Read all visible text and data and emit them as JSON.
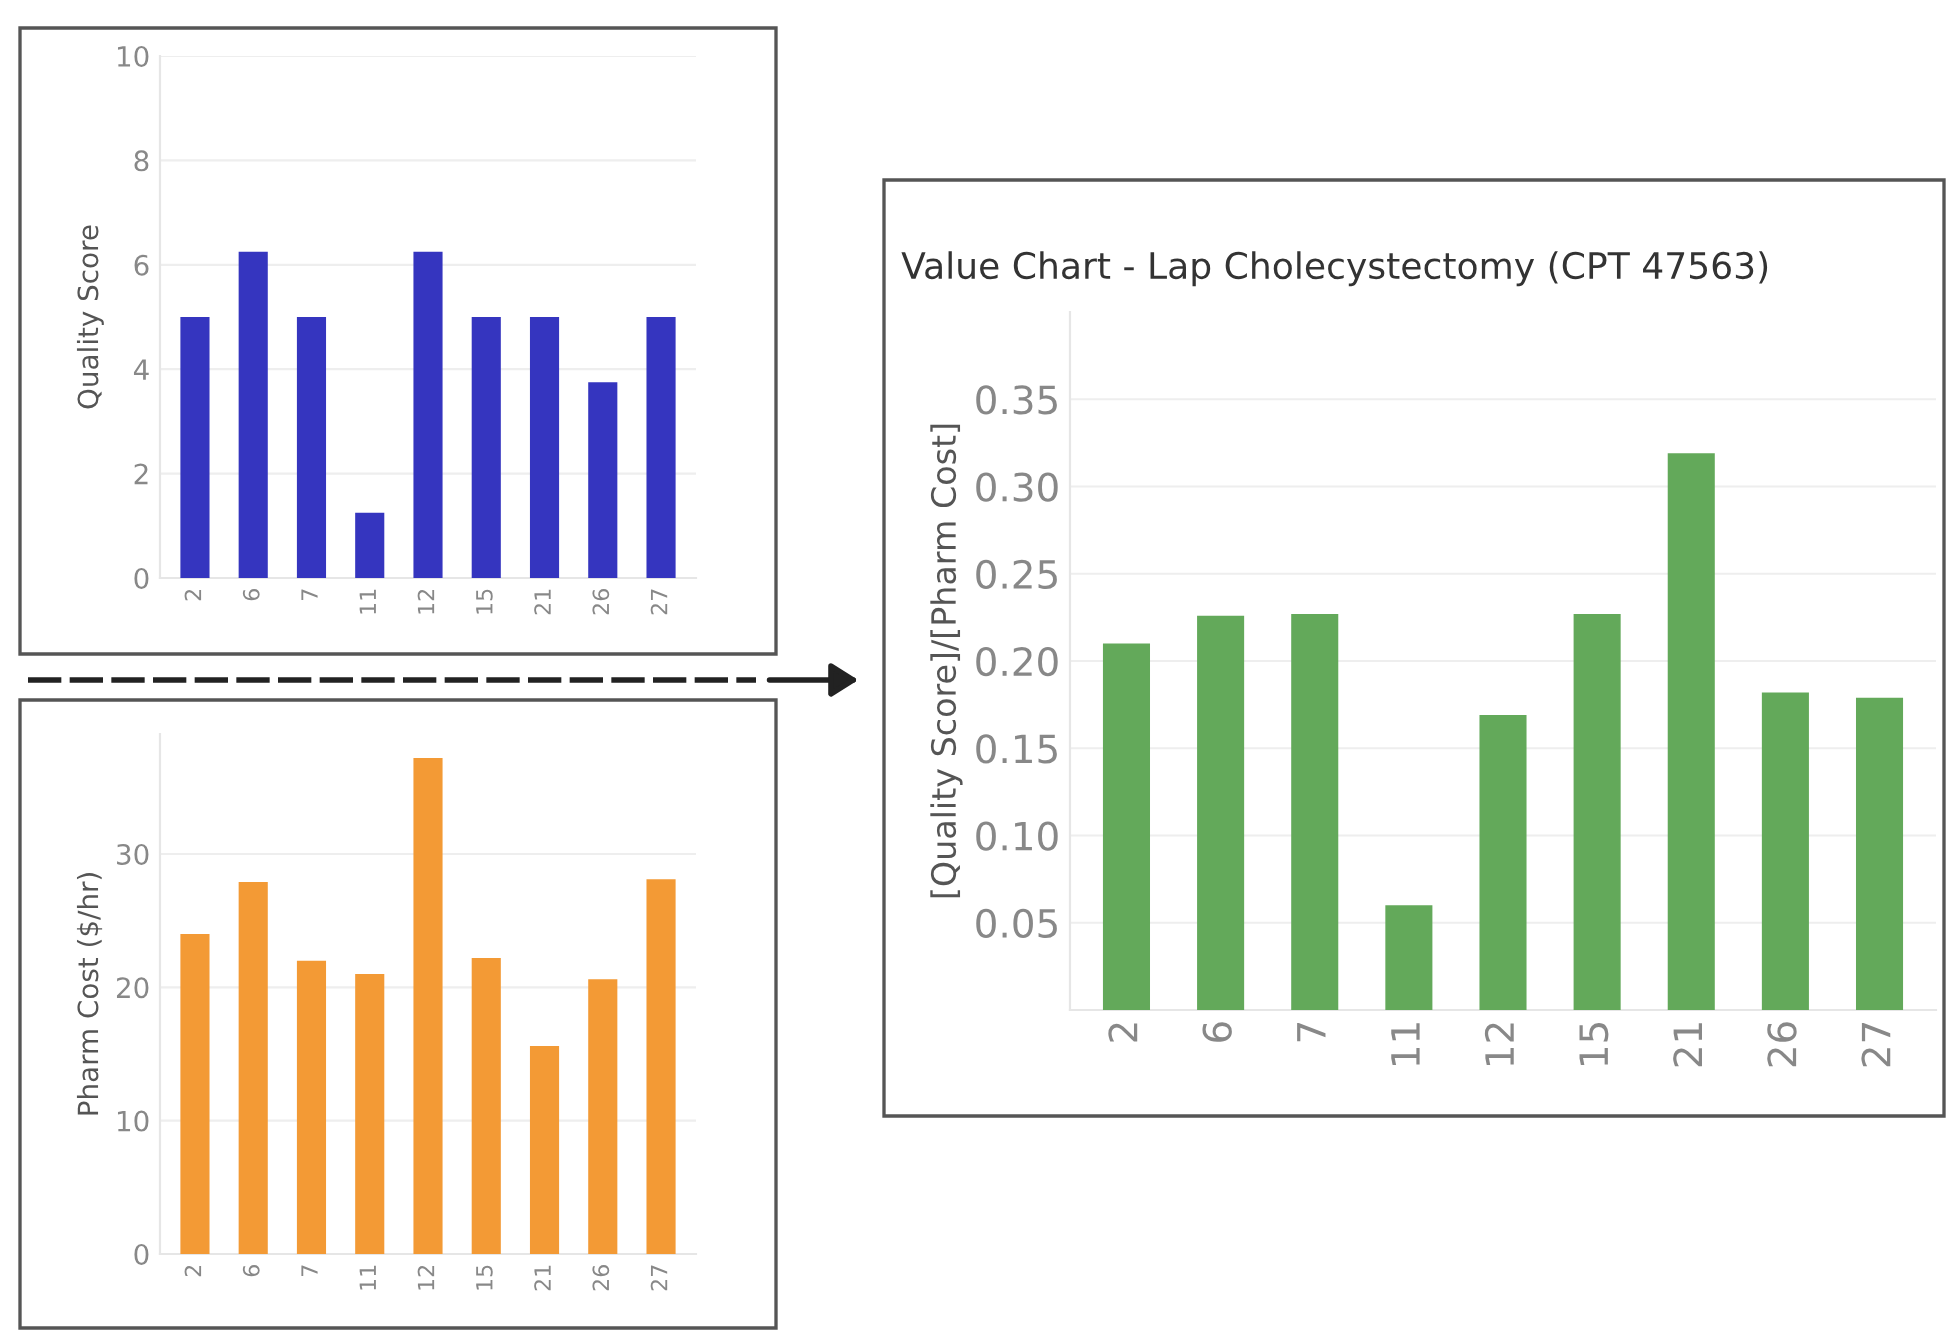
{
  "chart_data": [
    {
      "type": "bar",
      "ylabel": "Quality Score",
      "categories": [
        "2",
        "6",
        "7",
        "11",
        "12",
        "15",
        "21",
        "26",
        "27"
      ],
      "values": [
        5,
        6.25,
        5,
        1.25,
        6.25,
        5,
        5,
        3.75,
        5
      ],
      "color": "#3535bf",
      "ylim": [
        0,
        10
      ],
      "yticks": [
        0,
        2,
        4,
        6,
        8,
        10
      ],
      "grid": "y"
    },
    {
      "type": "bar",
      "ylabel": "Pharm Cost ($/hr)",
      "categories": [
        "2",
        "6",
        "7",
        "11",
        "12",
        "15",
        "21",
        "26",
        "27"
      ],
      "values": [
        24,
        27.9,
        22,
        21,
        37.2,
        22.2,
        15.6,
        20.6,
        28.1
      ],
      "color": "#f39a35",
      "ylim": [
        0,
        39
      ],
      "yticks": [
        0,
        10,
        20,
        30
      ],
      "grid": "y"
    },
    {
      "type": "bar",
      "title": "Value Chart - Lap Cholecystectomy (CPT 47563)",
      "ylabel": "[Quality Score]/[Pharm Cost]",
      "categories": [
        "2",
        "6",
        "7",
        "11",
        "12",
        "15",
        "21",
        "26",
        "27"
      ],
      "values": [
        0.21,
        0.226,
        0.227,
        0.06,
        0.169,
        0.227,
        0.319,
        0.182,
        0.179
      ],
      "color": "#63a95a",
      "ylim": [
        0,
        0.4
      ],
      "yticks": [
        {
          "value": 0.05,
          "label": "0.05"
        },
        {
          "value": 0.1,
          "label": "0.10"
        },
        {
          "value": 0.15,
          "label": "0.15"
        },
        {
          "value": 0.2,
          "label": "0.20"
        },
        {
          "value": 0.25,
          "label": "0.25"
        },
        {
          "value": 0.3,
          "label": "0.30"
        },
        {
          "value": 0.35,
          "label": "0.35"
        }
      ],
      "grid": "y"
    }
  ]
}
